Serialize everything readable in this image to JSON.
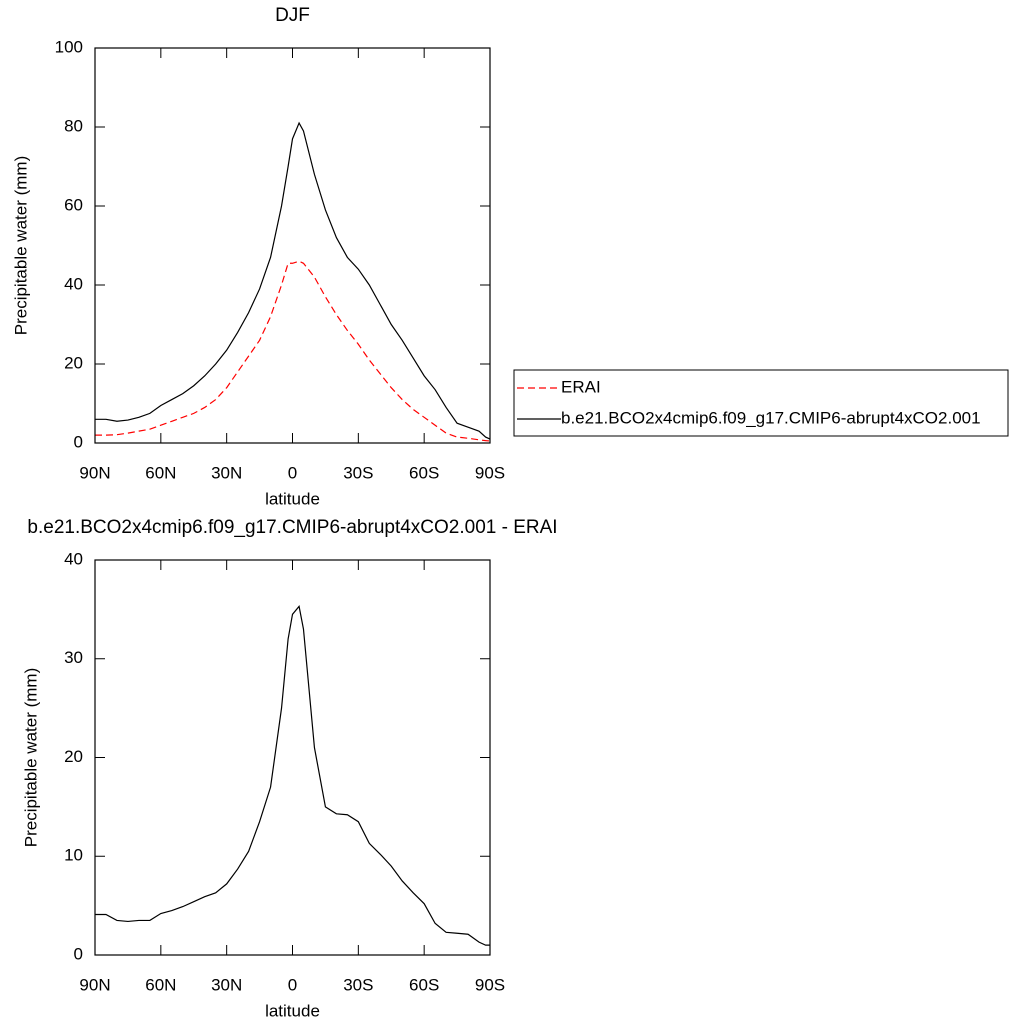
{
  "chart_data": [
    {
      "type": "line",
      "title": "DJF",
      "x_label": "latitude",
      "y_label": "Precipitable water (mm)",
      "xlim": [
        90,
        -90
      ],
      "xticks": [
        {
          "value": 90,
          "label": "90N"
        },
        {
          "value": 60,
          "label": "60N"
        },
        {
          "value": 30,
          "label": "30N"
        },
        {
          "value": 0,
          "label": "0"
        },
        {
          "value": -30,
          "label": "30S"
        },
        {
          "value": -60,
          "label": "60S"
        },
        {
          "value": -90,
          "label": "90S"
        }
      ],
      "ylim": [
        0,
        100
      ],
      "yticks": [
        0,
        20,
        40,
        60,
        80,
        100
      ],
      "legend": "outside-right",
      "x": [
        90,
        85,
        80,
        75,
        70,
        65,
        60,
        55,
        50,
        45,
        40,
        35,
        30,
        25,
        20,
        15,
        10,
        5,
        2,
        0,
        -3,
        -5,
        -10,
        -15,
        -20,
        -25,
        -30,
        -35,
        -40,
        -45,
        -50,
        -55,
        -60,
        -65,
        -70,
        -75,
        -80,
        -85,
        -88,
        -90
      ],
      "series": [
        {
          "name": "ERAI",
          "color": "#ff0000",
          "dash": "dashed",
          "values": [
            2,
            2,
            2.1,
            2.5,
            3,
            3.5,
            4.5,
            5.5,
            6.5,
            7.5,
            9,
            11,
            14,
            18,
            22,
            26,
            32,
            40,
            45.5,
            45.5,
            46,
            45.5,
            42,
            37,
            32.5,
            28.5,
            25,
            21,
            17.5,
            14,
            11,
            8.5,
            6.5,
            4.5,
            2.5,
            1.5,
            1.2,
            0.8,
            0.6,
            0.5
          ]
        },
        {
          "name": "b.e21.BCO2x4cmip6.f09_g17.CMIP6-abrupt4xCO2.001",
          "color": "#000000",
          "dash": "solid",
          "values": [
            6,
            6,
            5.5,
            5.8,
            6.5,
            7.5,
            9.5,
            11,
            12.5,
            14.5,
            17,
            20,
            23.5,
            28,
            33,
            39,
            47,
            60,
            70,
            77,
            81,
            79,
            68,
            59,
            52,
            47,
            44,
            40,
            35,
            30,
            26,
            21.5,
            17,
            13.5,
            9,
            5,
            4,
            3,
            1.5,
            1
          ]
        }
      ]
    },
    {
      "type": "line",
      "title": "b.e21.BCO2x4cmip6.f09_g17.CMIP6-abrupt4xCO2.001 - ERAI",
      "x_label": "latitude",
      "y_label": "Precipitable water (mm)",
      "xlim": [
        90,
        -90
      ],
      "xticks": [
        {
          "value": 90,
          "label": "90N"
        },
        {
          "value": 60,
          "label": "60N"
        },
        {
          "value": 30,
          "label": "30N"
        },
        {
          "value": 0,
          "label": "0"
        },
        {
          "value": -30,
          "label": "30S"
        },
        {
          "value": -60,
          "label": "60S"
        },
        {
          "value": -90,
          "label": "90S"
        }
      ],
      "ylim": [
        0,
        40
      ],
      "yticks": [
        0,
        10,
        20,
        30,
        40
      ],
      "x": [
        90,
        85,
        80,
        75,
        70,
        65,
        60,
        55,
        50,
        45,
        40,
        35,
        30,
        25,
        20,
        15,
        10,
        5,
        2,
        0,
        -3,
        -5,
        -10,
        -15,
        -20,
        -25,
        -30,
        -35,
        -40,
        -45,
        -50,
        -55,
        -60,
        -65,
        -70,
        -75,
        -80,
        -85,
        -88,
        -90
      ],
      "series": [
        {
          "color": "#000000",
          "dash": "solid",
          "values": [
            4.1,
            4.1,
            3.5,
            3.4,
            3.5,
            3.5,
            4.2,
            4.5,
            4.9,
            5.4,
            5.9,
            6.3,
            7.2,
            8.7,
            10.5,
            13.5,
            17,
            25,
            32,
            34.5,
            35.3,
            33,
            21,
            15,
            14.3,
            14.2,
            13.5,
            11.3,
            10.2,
            9,
            7.5,
            6.3,
            5.2,
            3.2,
            2.3,
            2.2,
            2.1,
            1.3,
            1,
            1
          ]
        }
      ]
    }
  ]
}
